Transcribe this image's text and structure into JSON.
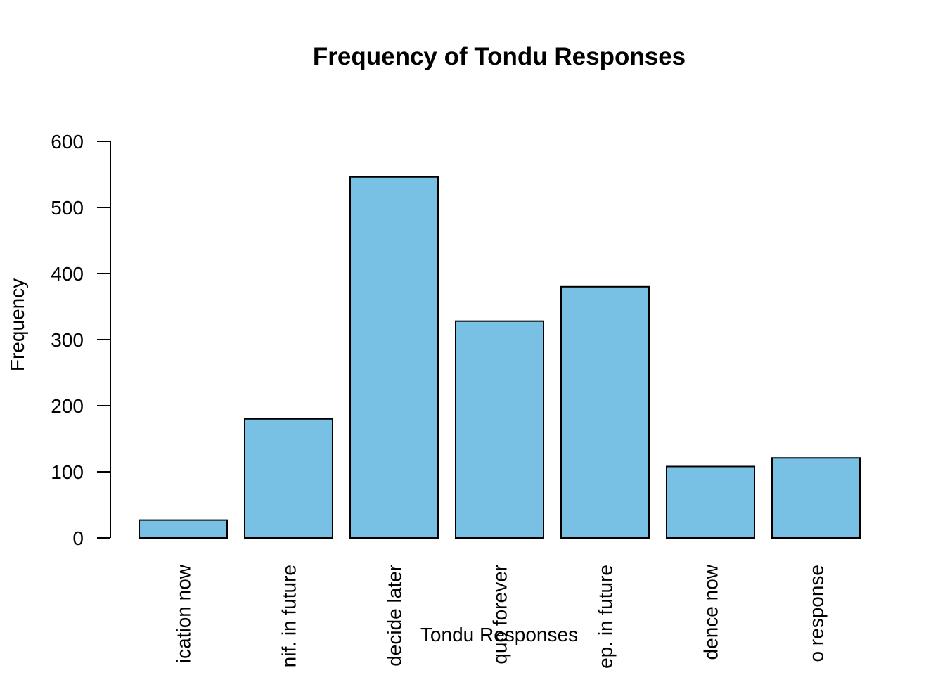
{
  "chart_data": {
    "type": "bar",
    "title": "Frequency of Tondu Responses",
    "xlabel": "Tondu Responses",
    "ylabel": "Frequency",
    "ylim": [
      0,
      600
    ],
    "yticks": [
      "0",
      "100",
      "200",
      "300",
      "400",
      "500",
      "600"
    ],
    "categories": [
      "ication now",
      "nif. in future",
      "decide later",
      "quo forever",
      "ep. in future",
      "dence now",
      "o response"
    ],
    "values": [
      27,
      180,
      546,
      328,
      380,
      108,
      121
    ],
    "grid": false,
    "legend": "none",
    "bar_color": "#78C1E5",
    "edge_color": "#000000"
  }
}
